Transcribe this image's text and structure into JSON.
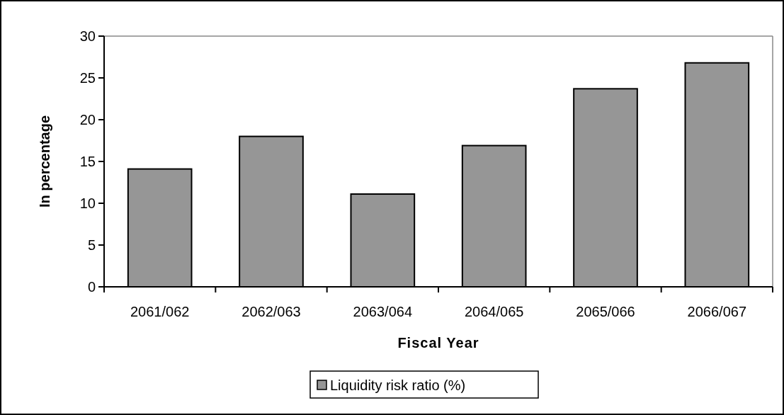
{
  "chart_data": {
    "type": "bar",
    "xlabel": "Fiscal Year",
    "ylabel": "In percentage",
    "categories": [
      "2061/062",
      "2062/063",
      "2063/064",
      "2064/065",
      "2065/066",
      "2066/067"
    ],
    "series": [
      {
        "name": "Liquidity risk ratio (%)",
        "color": "#969696",
        "values": [
          14.1,
          18.0,
          11.1,
          16.9,
          23.7,
          26.8
        ]
      }
    ],
    "ylim": [
      0,
      30
    ],
    "yticks": [
      0,
      5,
      10,
      15,
      20,
      25,
      30
    ],
    "legend": "bottom"
  }
}
